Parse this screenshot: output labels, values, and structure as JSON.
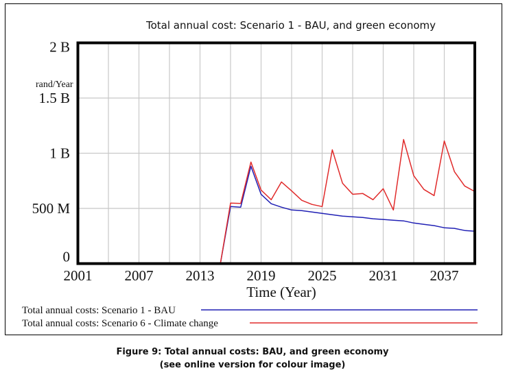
{
  "chart_data": {
    "type": "line",
    "title": "Total annual cost: Scenario 1 - BAU, and green economy",
    "xlabel": "Time (Year)",
    "ylabel": "rand/Year",
    "xlim": [
      2001,
      2040
    ],
    "ylim": [
      0,
      2000000000
    ],
    "grid": true,
    "legend_position": "bottom",
    "x_ticks": [
      2001,
      2007,
      2013,
      2019,
      2025,
      2031,
      2037
    ],
    "x_tick_labels": [
      "2001",
      "2007",
      "2013",
      "2019",
      "2025",
      "2031",
      "2037"
    ],
    "x_gridlines_every": 3,
    "y_ticks": [
      0,
      500000000,
      1000000000,
      1500000000,
      2000000000
    ],
    "y_tick_labels": [
      "0",
      "500 M",
      "1 B",
      "1.5 B",
      "2 B"
    ],
    "x": [
      2001,
      2015,
      2016,
      2017,
      2018,
      2019,
      2020,
      2021,
      2022,
      2023,
      2024,
      2025,
      2026,
      2027,
      2028,
      2029,
      2030,
      2031,
      2032,
      2033,
      2034,
      2035,
      2036,
      2037,
      2038,
      2039,
      2040
    ],
    "series": [
      {
        "name": "Total annual costs: Scenario 1 - BAU",
        "color": "#1f1fb4",
        "values": [
          0,
          0,
          517000000,
          511000000,
          882000000,
          628000000,
          542000000,
          511000000,
          486000000,
          480000000,
          467000000,
          455000000,
          443000000,
          430000000,
          424000000,
          418000000,
          406000000,
          400000000,
          393000000,
          387000000,
          368000000,
          356000000,
          344000000,
          325000000,
          319000000,
          300000000,
          294000000
        ]
      },
      {
        "name": "Total annual costs: Scenario 6 - Climate change",
        "color": "#e02a2a",
        "values": [
          0,
          0,
          548000000,
          545000000,
          920000000,
          666000000,
          579000000,
          740000000,
          659000000,
          573000000,
          536000000,
          517000000,
          1031000000,
          728000000,
          628000000,
          635000000,
          579000000,
          678000000,
          486000000,
          1124000000,
          796000000,
          672000000,
          616000000,
          1111000000,
          833000000,
          703000000,
          653000000
        ]
      }
    ]
  },
  "caption": {
    "line1": "Figure 9: Total annual costs: BAU, and green economy",
    "line2": "(see online version for colour image)"
  }
}
